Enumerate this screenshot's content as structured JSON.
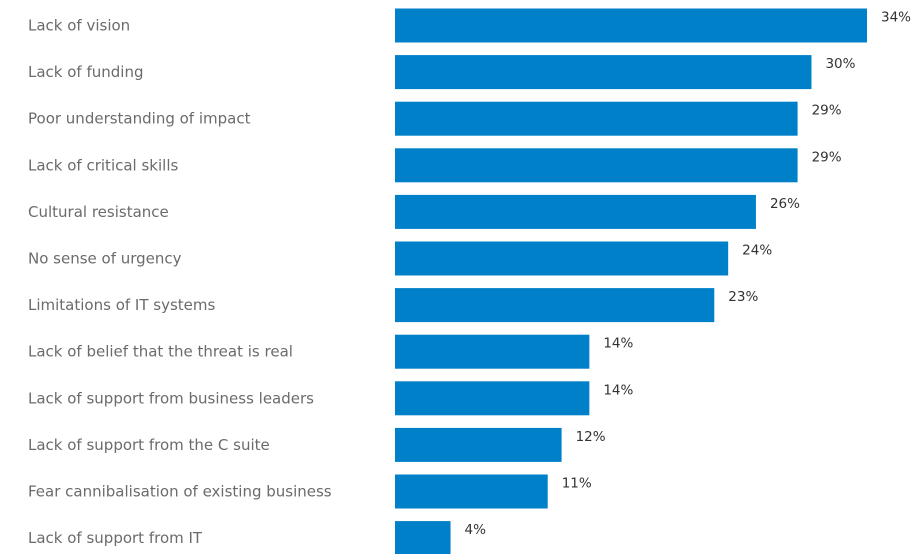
{
  "chart_data": {
    "type": "bar",
    "orientation": "horizontal",
    "title": "",
    "xlabel": "",
    "ylabel": "",
    "xlim": [
      0,
      34
    ],
    "grid": false,
    "bar_color": "#0080C8",
    "categories": [
      "Lack of vision",
      "Lack of funding",
      "Poor understanding of impact",
      "Lack of critical skills",
      "Cultural resistance",
      "No sense of urgency",
      "Limitations of IT systems",
      "Lack of belief that the threat is real",
      "Lack of support from business leaders",
      "Lack of support from the C suite",
      "Fear cannibalisation of existing business",
      "Lack of support from IT"
    ],
    "values": [
      34,
      30,
      29,
      29,
      26,
      24,
      23,
      14,
      14,
      12,
      11,
      4
    ],
    "value_labels": [
      "34%",
      "30%",
      "29%",
      "29%",
      "26%",
      "24%",
      "23%",
      "14%",
      "14%",
      "12%",
      "11%",
      "4%"
    ]
  }
}
